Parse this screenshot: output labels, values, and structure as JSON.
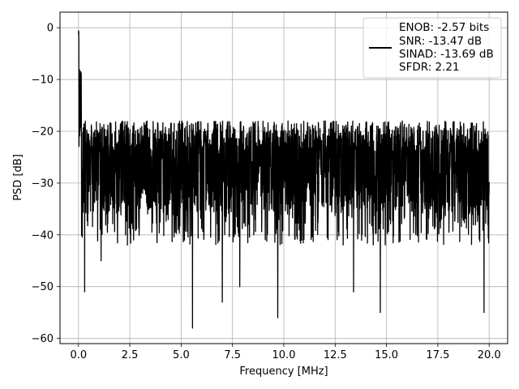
{
  "chart_data": {
    "type": "line",
    "title": "",
    "xlabel": "Frequency [MHz]",
    "ylabel": "PSD [dB]",
    "xlim": [
      -0.9,
      20.9
    ],
    "ylim": [
      -61,
      3
    ],
    "xticks": [
      0.0,
      2.5,
      5.0,
      7.5,
      10.0,
      12.5,
      15.0,
      17.5,
      20.0
    ],
    "xtick_labels": [
      "0.0",
      "2.5",
      "5.0",
      "7.5",
      "10.0",
      "12.5",
      "15.0",
      "17.5",
      "20.0"
    ],
    "yticks": [
      0,
      -10,
      -20,
      -30,
      -40,
      -50,
      -60
    ],
    "ytick_labels": [
      "0",
      "−10",
      "−20",
      "−30",
      "−40",
      "−50",
      "−60"
    ],
    "grid": true,
    "legend_position": "top-right",
    "series": [
      {
        "color": "#000000",
        "x_range": [
          0.0,
          20.0
        ],
        "peak": {
          "x": 0.0,
          "y": 0.0
        },
        "noise_floor_center": -27.5,
        "noise_floor_upper": -18,
        "notable_dips": [
          {
            "x": 0.3,
            "y": -51
          },
          {
            "x": 1.1,
            "y": -45
          },
          {
            "x": 5.55,
            "y": -58
          },
          {
            "x": 7.0,
            "y": -53
          },
          {
            "x": 7.85,
            "y": -50
          },
          {
            "x": 9.7,
            "y": -56
          },
          {
            "x": 13.4,
            "y": -51
          },
          {
            "x": 14.7,
            "y": -55
          },
          {
            "x": 19.75,
            "y": -55
          }
        ]
      }
    ],
    "legend": {
      "lines": [
        "ENOB: -2.57 bits",
        "SNR: -13.47 dB",
        "SINAD: -13.69 dB",
        "SFDR: 2.21"
      ]
    }
  },
  "colors": {
    "line": "#000000",
    "grid": "#b0b0b0",
    "axes": "#000000",
    "legend_border": "#cccccc"
  }
}
